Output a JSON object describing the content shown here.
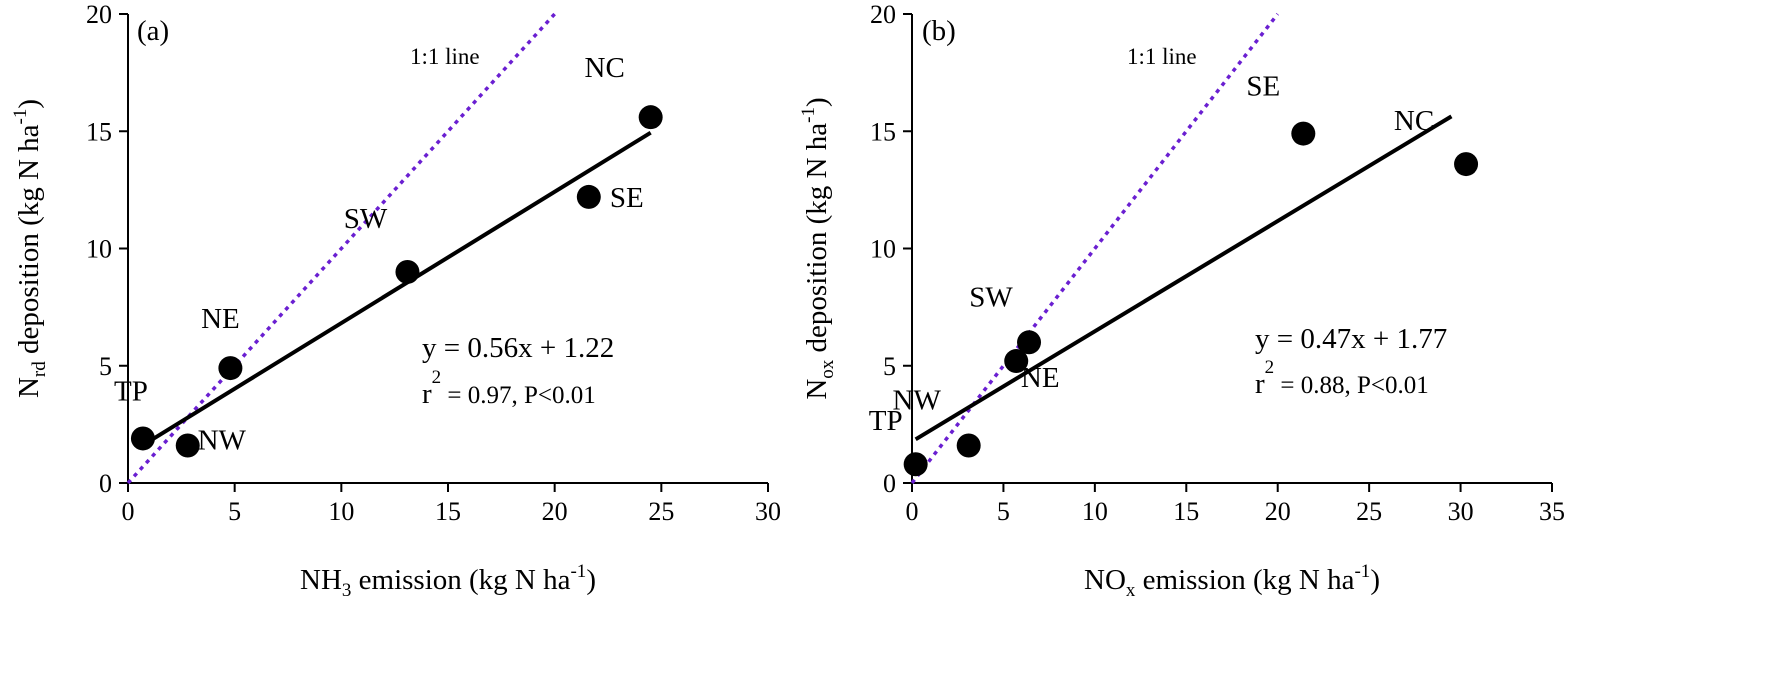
{
  "chart_data": [
    {
      "type": "scatter",
      "panel_label": "(a)",
      "xlabel": {
        "pre": "NH",
        "sub": "3",
        "post": " emission (kg N ha",
        "sup": "-1",
        "end": ")"
      },
      "ylabel": {
        "pre": "N",
        "sub": "rd",
        "post": " deposition (kg N ha",
        "sup": "-1",
        "end": ")"
      },
      "xlim": [
        0,
        30
      ],
      "ylim": [
        0,
        20
      ],
      "xticks": [
        0,
        5,
        10,
        15,
        20,
        25,
        30
      ],
      "yticks": [
        0,
        5,
        10,
        15,
        20
      ],
      "points": [
        {
          "label": "TP",
          "x": 0.7,
          "y": 1.9
        },
        {
          "label": "NW",
          "x": 2.8,
          "y": 1.6
        },
        {
          "label": "NE",
          "x": 4.8,
          "y": 4.9
        },
        {
          "label": "SW",
          "x": 13.1,
          "y": 9.0
        },
        {
          "label": "SE",
          "x": 21.6,
          "y": 12.2
        },
        {
          "label": "NC",
          "x": 24.5,
          "y": 15.6
        }
      ],
      "fit": {
        "slope": 0.56,
        "intercept": 1.22,
        "x_range": [
          0.7,
          24.5
        ]
      },
      "equation": "y = 0.56x + 1.22",
      "r2": {
        "r": "r",
        "sup": "2",
        "rest": " = 0.97, P<0.01"
      },
      "one_to_one_label": "1:1 line",
      "colors": {
        "points": "#000000",
        "fit": "#000000",
        "one_to_one": "#6a1fd1"
      }
    },
    {
      "type": "scatter",
      "panel_label": "(b)",
      "xlabel": {
        "pre": "NO",
        "sub": "x",
        "post": " emission (kg N ha",
        "sup": "-1",
        "end": ")"
      },
      "ylabel": {
        "pre": "N",
        "sub": "ox",
        "post": " deposition (kg N ha",
        "sup": "-1",
        "end": ")"
      },
      "xlim": [
        0,
        35
      ],
      "ylim": [
        0,
        20
      ],
      "xticks": [
        0,
        5,
        10,
        15,
        20,
        25,
        30,
        35
      ],
      "yticks": [
        0,
        5,
        10,
        15,
        20
      ],
      "points": [
        {
          "label": "TP",
          "x": 0.2,
          "y": 0.8
        },
        {
          "label": "NW",
          "x": 3.1,
          "y": 1.6
        },
        {
          "label": "NE",
          "x": 5.7,
          "y": 5.2
        },
        {
          "label": "SW",
          "x": 6.4,
          "y": 6.0
        },
        {
          "label": "SE",
          "x": 21.4,
          "y": 14.9
        },
        {
          "label": "NC",
          "x": 30.3,
          "y": 13.6
        }
      ],
      "fit": {
        "slope": 0.47,
        "intercept": 1.77,
        "x_range": [
          0.2,
          29.5
        ]
      },
      "equation": "y = 0.47x + 1.77",
      "r2": {
        "r": "r",
        "sup": "2",
        "rest": " = 0.88, P<0.01"
      },
      "one_to_one_label": "1:1 line",
      "colors": {
        "points": "#000000",
        "fit": "#000000",
        "one_to_one": "#6a1fd1"
      }
    }
  ]
}
